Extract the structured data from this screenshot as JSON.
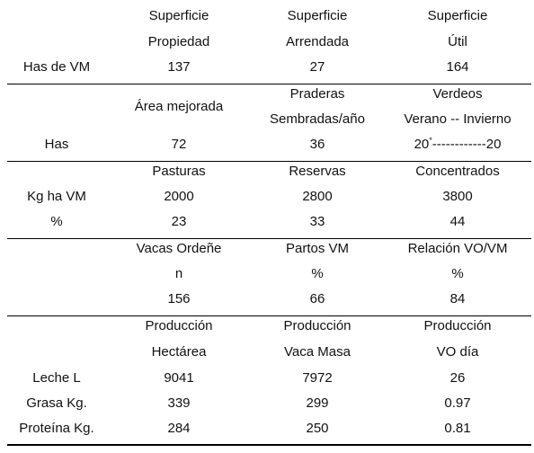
{
  "section1": {
    "headers": [
      [
        "Superficie",
        "Propiedad"
      ],
      [
        "Superficie",
        "Arrendada"
      ],
      [
        "Superficie",
        "Útil"
      ]
    ],
    "row": {
      "label": "Has de VM",
      "values": [
        "137",
        "27",
        "164"
      ]
    }
  },
  "section2": {
    "headers": [
      [
        "Área mejorada"
      ],
      [
        "Praderas",
        "Sembradas/año"
      ],
      [
        "Verdeos",
        "Verano -- Invierno"
      ]
    ],
    "row": {
      "label": "Has",
      "values": [
        "72",
        "36"
      ],
      "verdeos": {
        "verano": "20",
        "superscript": "*",
        "dashes": "------------",
        "invierno": "20"
      }
    }
  },
  "section3": {
    "headers": [
      "Pasturas",
      "Reservas",
      "Concentrados"
    ],
    "rows": [
      {
        "label": "Kg ha VM",
        "values": [
          "2000",
          "2800",
          "3800"
        ]
      },
      {
        "label": "%",
        "values": [
          "23",
          "33",
          "44"
        ]
      }
    ]
  },
  "section4": {
    "headers": [
      [
        "Vacas Ordeñe",
        "n"
      ],
      [
        "Partos VM",
        "%"
      ],
      [
        "Relación VO/VM",
        "%"
      ]
    ],
    "values": [
      "156",
      "66",
      "84"
    ]
  },
  "section5": {
    "headers": [
      [
        "Producción",
        "Hectárea"
      ],
      [
        "Producción",
        "Vaca Masa"
      ],
      [
        "Producción",
        "VO día"
      ]
    ],
    "rows": [
      {
        "label": "Leche L",
        "values": [
          "9041",
          "7972",
          "26"
        ]
      },
      {
        "label": "Grasa Kg.",
        "values": [
          "339",
          "299",
          "0.97"
        ]
      },
      {
        "label": "Proteína Kg.",
        "values": [
          "284",
          "250",
          "0.81"
        ]
      }
    ]
  }
}
